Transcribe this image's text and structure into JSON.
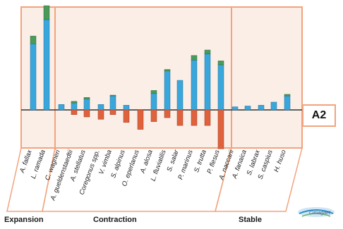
{
  "panel_label": "A2",
  "logo_text": "Cimagaet",
  "colors": {
    "bar_blue": "#3aa7dc",
    "bar_green": "#4a9a5a",
    "bar_red": "#e0623d",
    "panel_border": "#f2a37d",
    "panel_fill": "#fbeee7"
  },
  "chart_data": {
    "type": "bar",
    "title": "",
    "xlabel": "",
    "ylabel": "",
    "ylim": [
      -55,
      135
    ],
    "grid": false,
    "groups": [
      {
        "name": "Expansion",
        "categories": [
          "A. fallax",
          "L. ramada"
        ]
      },
      {
        "name": "Contraction",
        "categories": [
          "C. wagneri",
          "A. gueldenstaedtii",
          "A. stellatus",
          "Coregonus spp.",
          "V. vimba",
          "S. alpinus",
          "O. eperlanus",
          "A. alosa",
          "L. fluviatilis",
          "S. salar",
          "P. marinus",
          "S. trutta",
          "P. flesus"
        ]
      },
      {
        "name": "Stable",
        "categories": [
          "A. naccarii",
          "A. fanaica",
          "S. labrax",
          "S. caspius",
          "H. huso"
        ]
      }
    ],
    "categories": [
      "A. fallax",
      "L. ramada",
      "C. wagneri",
      "A. gueldenstaedtii",
      "A. stellatus",
      "Coregonus spp.",
      "V. vimba",
      "S. alpinus",
      "O. eperlanus",
      "A. alosa",
      "L. fluviatilis",
      "S. salar",
      "P. marinus",
      "S. trutta",
      "P. flesus",
      "A. naccarii",
      "A. fanaica",
      "S. labrax",
      "S. caspius",
      "H. huso"
    ],
    "series": [
      {
        "color": "blue",
        "values": [
          85,
          116,
          7,
          9,
          14,
          7,
          18,
          6,
          0,
          21,
          50,
          38,
          64,
          72,
          58,
          4,
          5,
          6,
          10,
          18
        ]
      },
      {
        "color": "green",
        "values": [
          10,
          18,
          0,
          2,
          2,
          0,
          1,
          0,
          0,
          4,
          2,
          0,
          6,
          5,
          5,
          0,
          0,
          0,
          0,
          2
        ]
      },
      {
        "color": "red",
        "values": [
          0,
          0,
          0,
          -6,
          -9,
          -12,
          -6,
          -16,
          -25,
          -15,
          -10,
          -20,
          -20,
          -20,
          -50,
          0,
          0,
          0,
          0,
          0
        ]
      }
    ]
  }
}
